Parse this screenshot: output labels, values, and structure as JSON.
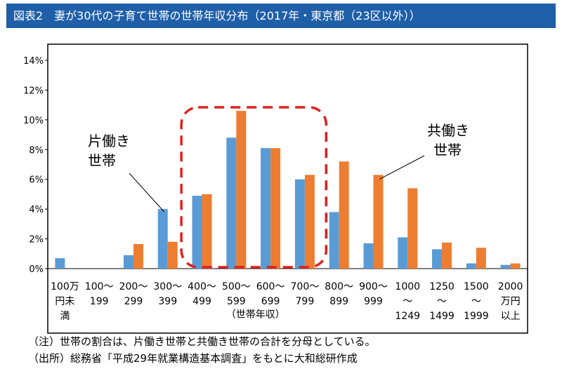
{
  "title": "図表2　妻が30代の子育て世帯の世帯年収分布（2017年・東京都（23区以外））",
  "chart_data": {
    "type": "bar",
    "categories": [
      [
        "100万",
        "円未",
        "満"
      ],
      [
        "100～",
        "199"
      ],
      [
        "200～",
        "299"
      ],
      [
        "300～",
        "399"
      ],
      [
        "400～",
        "499"
      ],
      [
        "500～",
        "599"
      ],
      [
        "600～",
        "699"
      ],
      [
        "700～",
        "799"
      ],
      [
        "800～",
        "899"
      ],
      [
        "900～",
        "999"
      ],
      [
        "1000",
        "～",
        "1249"
      ],
      [
        "1250",
        "～",
        "1499"
      ],
      [
        "1500",
        "～",
        "1999"
      ],
      [
        "2000",
        "万円",
        "以上"
      ]
    ],
    "series": [
      {
        "name": "片働き世帯",
        "color": "#5b9bd5",
        "values": [
          0.7,
          0,
          0.9,
          4.0,
          4.9,
          8.8,
          8.1,
          6.0,
          3.8,
          1.7,
          2.1,
          1.3,
          0.35,
          0.25
        ]
      },
      {
        "name": "共働き世帯",
        "color": "#ed7d31",
        "values": [
          0,
          0,
          1.65,
          1.8,
          5.0,
          10.6,
          8.1,
          6.3,
          7.2,
          6.3,
          5.4,
          1.75,
          1.4,
          0.35
        ]
      }
    ],
    "ylim": [
      0,
      14
    ],
    "yticks": [
      "0%",
      "2%",
      "4%",
      "6%",
      "8%",
      "10%",
      "12%",
      "14%"
    ],
    "xlabel": "（世帯年収）",
    "annotations": [
      {
        "text": [
          "片働き",
          "世帯"
        ],
        "series": 0,
        "category": 3
      },
      {
        "text": [
          "共働き",
          "世帯"
        ],
        "series": 1,
        "category": 9
      }
    ],
    "highlight": {
      "from_category": 4,
      "to_category": 7,
      "color": "#e02020"
    }
  },
  "notes": [
    "（注）世帯の割合は、片働き世帯と共働き世帯の合計を分母としている。",
    "（出所）総務省「平成29年就業構造基本調査」をもとに大和総研作成"
  ]
}
